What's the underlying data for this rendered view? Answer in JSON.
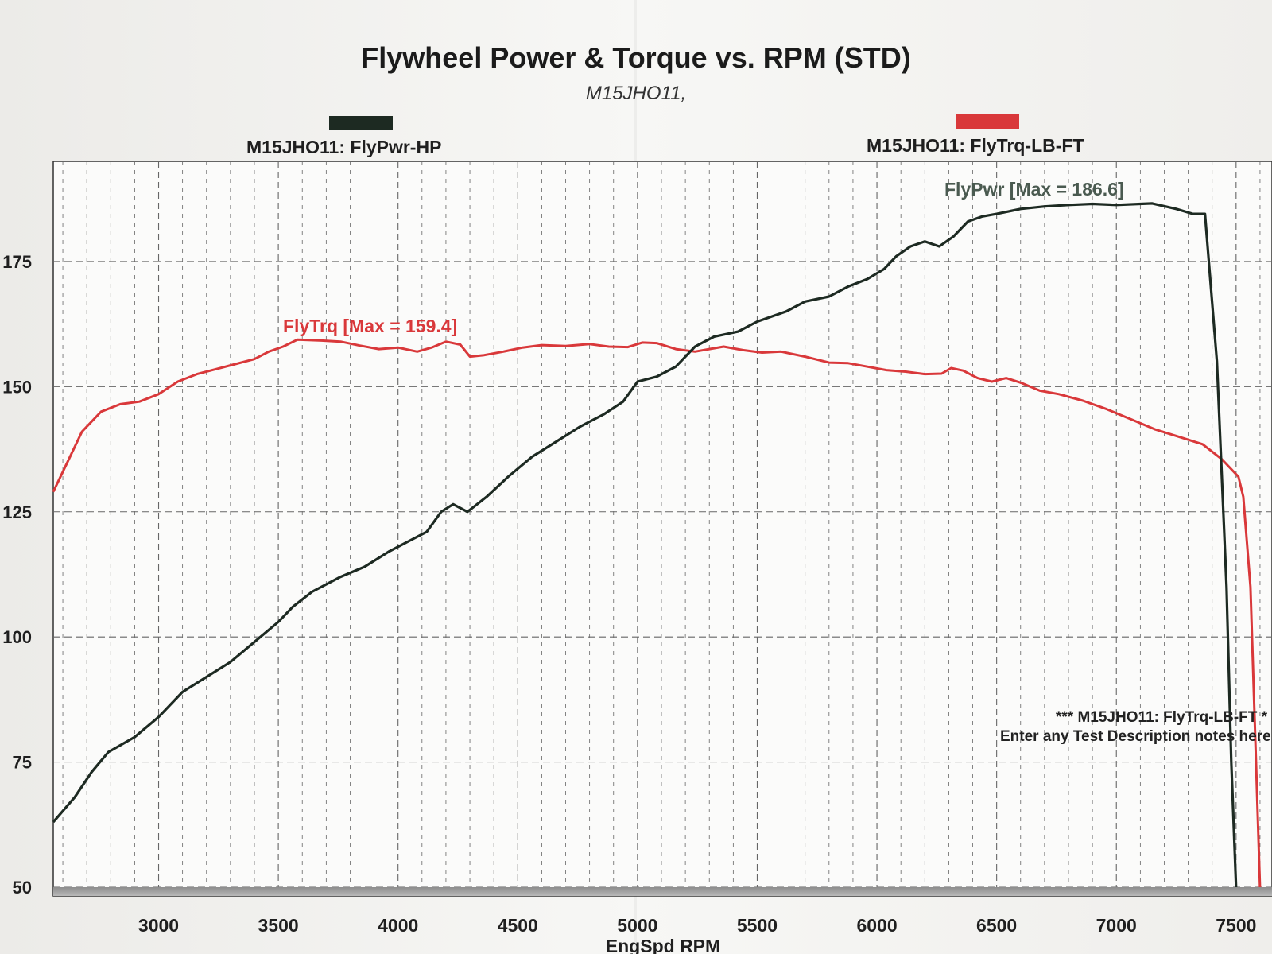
{
  "header": {
    "title": "Flywheel Power & Torque vs. RPM (STD)",
    "subtitle": "M15JHO11,"
  },
  "legend": {
    "power_label": "M15JHO11: FlyPwr-HP",
    "torque_label": "M15JHO11: FlyTrq-LB-FT"
  },
  "colors": {
    "power": "#1d2a22",
    "torque": "#d9383a",
    "grid": "#666666"
  },
  "annotations": {
    "power_max": "FlyPwr [Max = 186.6]",
    "torque_max": "FlyTrq [Max = 159.4]",
    "note_line1": "*** M15JHO11: FlyTrq-LB-FT  *",
    "note_line2": "Enter any Test Description notes here"
  },
  "chart_data": {
    "type": "line",
    "title": "Flywheel Power & Torque vs. RPM (STD)",
    "subtitle": "M15JHO11,",
    "xlabel": "EngSpd RPM",
    "ylabel": "",
    "xlim": [
      2560,
      7650
    ],
    "ylim": [
      50,
      195
    ],
    "x_ticks": [
      3000,
      3500,
      4000,
      4500,
      5000,
      5500,
      6000,
      6500,
      7000,
      7500
    ],
    "y_ticks": [
      50,
      75,
      100,
      125,
      150,
      175
    ],
    "grid": true,
    "legend_position": "top",
    "series": [
      {
        "name": "M15JHO11: FlyPwr-HP",
        "points": [
          [
            2560,
            63
          ],
          [
            2650,
            68
          ],
          [
            2720,
            73
          ],
          [
            2790,
            77
          ],
          [
            2900,
            80
          ],
          [
            3000,
            84
          ],
          [
            3100,
            89
          ],
          [
            3200,
            92
          ],
          [
            3300,
            95
          ],
          [
            3400,
            99
          ],
          [
            3500,
            103
          ],
          [
            3560,
            106
          ],
          [
            3640,
            109
          ],
          [
            3760,
            112
          ],
          [
            3860,
            114
          ],
          [
            3960,
            117
          ],
          [
            4040,
            119
          ],
          [
            4120,
            121
          ],
          [
            4180,
            125
          ],
          [
            4230,
            126.5
          ],
          [
            4290,
            125
          ],
          [
            4370,
            128
          ],
          [
            4460,
            132
          ],
          [
            4560,
            136
          ],
          [
            4660,
            139
          ],
          [
            4760,
            142
          ],
          [
            4860,
            144.5
          ],
          [
            4940,
            147
          ],
          [
            5000,
            151
          ],
          [
            5080,
            152
          ],
          [
            5160,
            154
          ],
          [
            5240,
            158
          ],
          [
            5320,
            160
          ],
          [
            5420,
            161
          ],
          [
            5500,
            163
          ],
          [
            5620,
            165
          ],
          [
            5700,
            167
          ],
          [
            5800,
            168
          ],
          [
            5880,
            170
          ],
          [
            5960,
            171.5
          ],
          [
            6030,
            173.5
          ],
          [
            6080,
            176
          ],
          [
            6140,
            178
          ],
          [
            6200,
            179
          ],
          [
            6260,
            178
          ],
          [
            6320,
            180
          ],
          [
            6380,
            183
          ],
          [
            6440,
            184
          ],
          [
            6500,
            184.5
          ],
          [
            6600,
            185.5
          ],
          [
            6700,
            186
          ],
          [
            6800,
            186.3
          ],
          [
            6900,
            186.5
          ],
          [
            7000,
            186.3
          ],
          [
            7100,
            186.5
          ],
          [
            7150,
            186.6
          ],
          [
            7250,
            185.5
          ],
          [
            7320,
            184.5
          ],
          [
            7370,
            184.5
          ],
          [
            7420,
            155
          ],
          [
            7460,
            110
          ],
          [
            7480,
            75
          ],
          [
            7500,
            50
          ]
        ]
      },
      {
        "name": "M15JHO11: FlyTrq-LB-FT",
        "points": [
          [
            2560,
            129
          ],
          [
            2620,
            135
          ],
          [
            2680,
            141
          ],
          [
            2760,
            145
          ],
          [
            2840,
            146.5
          ],
          [
            2920,
            147
          ],
          [
            3000,
            148.5
          ],
          [
            3080,
            151
          ],
          [
            3160,
            152.5
          ],
          [
            3240,
            153.5
          ],
          [
            3320,
            154.5
          ],
          [
            3400,
            155.5
          ],
          [
            3460,
            157
          ],
          [
            3520,
            158
          ],
          [
            3580,
            159.4
          ],
          [
            3680,
            159.2
          ],
          [
            3760,
            159
          ],
          [
            3840,
            158.2
          ],
          [
            3920,
            157.5
          ],
          [
            4000,
            157.8
          ],
          [
            4080,
            157
          ],
          [
            4140,
            157.8
          ],
          [
            4200,
            159
          ],
          [
            4260,
            158.4
          ],
          [
            4300,
            156
          ],
          [
            4360,
            156.3
          ],
          [
            4440,
            157
          ],
          [
            4520,
            157.8
          ],
          [
            4600,
            158.3
          ],
          [
            4700,
            158.1
          ],
          [
            4800,
            158.5
          ],
          [
            4880,
            158
          ],
          [
            4960,
            157.9
          ],
          [
            5020,
            158.8
          ],
          [
            5080,
            158.7
          ],
          [
            5160,
            157.5
          ],
          [
            5240,
            157
          ],
          [
            5300,
            157.5
          ],
          [
            5360,
            158
          ],
          [
            5440,
            157.3
          ],
          [
            5520,
            156.8
          ],
          [
            5600,
            157
          ],
          [
            5700,
            156
          ],
          [
            5800,
            154.8
          ],
          [
            5880,
            154.7
          ],
          [
            5960,
            154
          ],
          [
            6040,
            153.3
          ],
          [
            6120,
            153
          ],
          [
            6200,
            152.5
          ],
          [
            6270,
            152.6
          ],
          [
            6310,
            153.7
          ],
          [
            6360,
            153.2
          ],
          [
            6420,
            151.7
          ],
          [
            6480,
            151
          ],
          [
            6540,
            151.7
          ],
          [
            6600,
            150.8
          ],
          [
            6680,
            149.2
          ],
          [
            6760,
            148.5
          ],
          [
            6860,
            147.2
          ],
          [
            6960,
            145.5
          ],
          [
            7060,
            143.5
          ],
          [
            7160,
            141.5
          ],
          [
            7260,
            140
          ],
          [
            7360,
            138.5
          ],
          [
            7440,
            135.5
          ],
          [
            7490,
            133
          ],
          [
            7510,
            132
          ],
          [
            7530,
            128
          ],
          [
            7560,
            110
          ],
          [
            7600,
            50
          ]
        ]
      }
    ]
  }
}
